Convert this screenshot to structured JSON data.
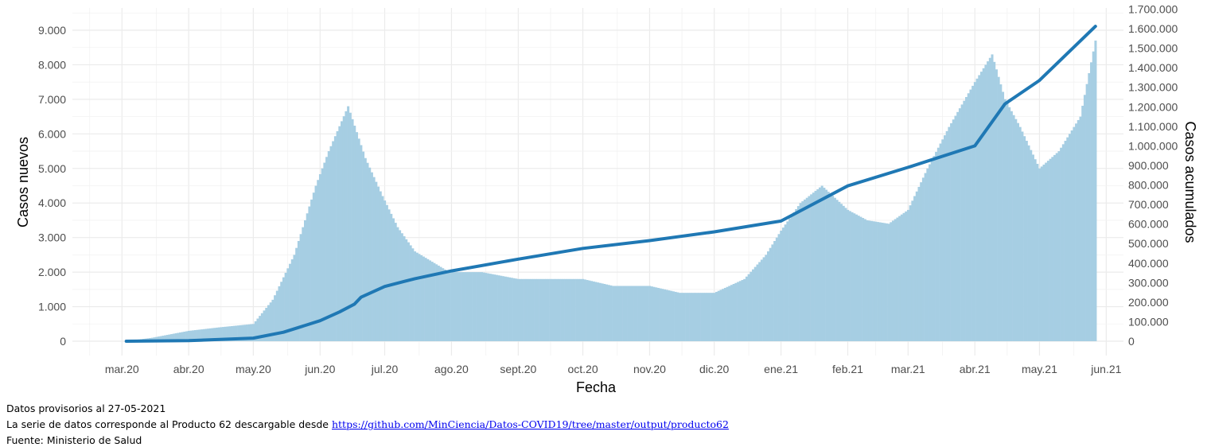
{
  "chart_data": {
    "type": "bar+line",
    "title": "",
    "xlabel": "Fecha",
    "ylabel_left": "Casos nuevos",
    "ylabel_right": "Casos acumulados",
    "x_ticks": [
      "mar.20",
      "abr.20",
      "may.20",
      "jun.20",
      "jul.20",
      "ago.20",
      "sept.20",
      "oct.20",
      "nov.20",
      "dic.20",
      "ene.21",
      "feb.21",
      "mar.21",
      "abr.21",
      "may.21",
      "jun.21"
    ],
    "y_left_ticks": [
      "0",
      "1.000",
      "2.000",
      "3.000",
      "4.000",
      "5.000",
      "6.000",
      "7.000",
      "8.000",
      "9.000"
    ],
    "y_right_ticks": [
      "0",
      "100.000",
      "200.000",
      "300.000",
      "400.000",
      "500.000",
      "600.000",
      "700.000",
      "800.000",
      "900.000",
      "1.000.000",
      "1.100.000",
      "1.200.000",
      "1.300.000",
      "1.400.000",
      "1.500.000",
      "1.600.000",
      "1.700.000"
    ],
    "ylim_left": [
      0,
      9600
    ],
    "ylim_right": [
      0,
      1700000
    ],
    "x_range": [
      "2020-02-07",
      "2021-06-09"
    ],
    "grid": true,
    "bar_color": "#a6cee3",
    "line_color": "#1f78b4",
    "series": [
      {
        "name": "Casos nuevos",
        "type": "bar",
        "x": [
          "2020-03-03",
          "2020-03-15",
          "2020-04-01",
          "2020-04-15",
          "2020-05-01",
          "2020-05-10",
          "2020-05-20",
          "2020-05-30",
          "2020-06-05",
          "2020-06-14",
          "2020-06-22",
          "2020-06-30",
          "2020-07-07",
          "2020-07-15",
          "2020-07-31",
          "2020-08-15",
          "2020-09-01",
          "2020-09-18",
          "2020-10-01",
          "2020-10-15",
          "2020-11-01",
          "2020-11-15",
          "2020-12-01",
          "2020-12-15",
          "2020-12-25",
          "2021-01-01",
          "2021-01-10",
          "2021-01-20",
          "2021-02-01",
          "2021-02-10",
          "2021-02-20",
          "2021-03-01",
          "2021-03-10",
          "2021-03-20",
          "2021-04-01",
          "2021-04-09",
          "2021-04-15",
          "2021-04-22",
          "2021-05-01",
          "2021-05-10",
          "2021-05-20",
          "2021-05-27"
        ],
        "values": [
          0,
          100,
          300,
          400,
          500,
          1200,
          2500,
          4500,
          5500,
          6800,
          5300,
          4200,
          3300,
          2600,
          2000,
          2000,
          1800,
          1800,
          1800,
          1600,
          1600,
          1400,
          1400,
          1800,
          2500,
          3200,
          4000,
          4500,
          3800,
          3500,
          3400,
          3800,
          5000,
          6200,
          7500,
          8300,
          7000,
          6200,
          5000,
          5500,
          6500,
          8700
        ]
      },
      {
        "name": "Casos acumulados",
        "type": "line",
        "x": [
          "2020-03-03",
          "2020-04-01",
          "2020-05-01",
          "2020-05-15",
          "2020-06-01",
          "2020-06-10",
          "2020-06-17",
          "2020-06-20",
          "2020-07-01",
          "2020-07-15",
          "2020-08-01",
          "2020-09-01",
          "2020-10-01",
          "2020-11-01",
          "2020-12-01",
          "2021-01-01",
          "2021-02-01",
          "2021-03-01",
          "2021-04-01",
          "2021-04-15",
          "2021-05-01",
          "2021-05-27"
        ],
        "values": [
          0,
          3000,
          16000,
          46000,
          105000,
          150000,
          190000,
          225000,
          280000,
          320000,
          360000,
          420000,
          475000,
          515000,
          560000,
          615000,
          795000,
          890000,
          1000000,
          1215000,
          1335000,
          1612000
        ]
      }
    ]
  },
  "footer": {
    "line1": "Datos provisorios al 27-05-2021",
    "line2_prefix": "La serie de datos corresponde al Producto 62 descargable desde ",
    "link": "https://github.com/MinCiencia/Datos-COVID19/tree/master/output/producto62",
    "line3": "Fuente: Ministerio de Salud"
  }
}
